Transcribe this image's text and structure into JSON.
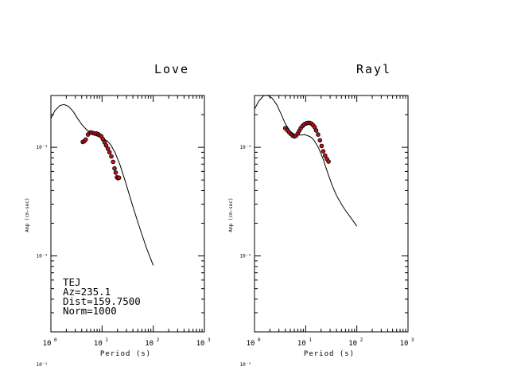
{
  "chart_data": [
    {
      "type": "line",
      "title": "Love",
      "xlabel": "Period (s)",
      "ylabel": "Amp (cm-sec)",
      "xscale": "log",
      "yscale": "log",
      "xlim": [
        1,
        1000
      ],
      "ylim": [
        2e-05,
        0.003
      ],
      "x_ticks": [
        {
          "base": "10",
          "exp": "0"
        },
        {
          "base": "10",
          "exp": "1"
        },
        {
          "base": "10",
          "exp": "2"
        },
        {
          "base": "10",
          "exp": "3"
        }
      ],
      "y_ticks": [
        {
          "value": 0.001,
          "label": "10⁻³"
        },
        {
          "value": 0.0001,
          "label": "10⁻⁴"
        },
        {
          "value": 1e-05,
          "label": "10⁻⁵"
        }
      ],
      "series": [
        {
          "kind": "line",
          "x": [
            1,
            1.2,
            1.5,
            1.8,
            2.2,
            2.7,
            3.3,
            4,
            5,
            6,
            7,
            8,
            9.5,
            11,
            13,
            15,
            18,
            22,
            27,
            33,
            40,
            50,
            60,
            75,
            100
          ],
          "y": [
            0.00185,
            0.00218,
            0.00242,
            0.00248,
            0.00239,
            0.00215,
            0.00185,
            0.00163,
            0.00145,
            0.00135,
            0.0013,
            0.00127,
            0.00124,
            0.00119,
            0.00113,
            0.00104,
            0.00089,
            0.000705,
            0.000525,
            0.000385,
            0.000285,
            0.000205,
            0.000158,
            0.000116,
            8.2e-05
          ]
        },
        {
          "kind": "scatter",
          "x": [
            4.2,
            4.5,
            4.8,
            5.3,
            5.8,
            6.2,
            6.7,
            7.2,
            7.8,
            8.4,
            9.0,
            9.7,
            10.4,
            11.2,
            12.0,
            13.0,
            14.0,
            15.2,
            16.4,
            17.5,
            18.5,
            19.5,
            20.5,
            21.5
          ],
          "y": [
            0.00112,
            0.00114,
            0.00118,
            0.00131,
            0.00137,
            0.00137,
            0.00135,
            0.00134,
            0.00134,
            0.00132,
            0.00129,
            0.00126,
            0.00119,
            0.00111,
            0.00104,
            0.00097,
            0.0009,
            0.000825,
            0.000735,
            0.00064,
            0.000585,
            0.00053,
            0.00052,
            0.000525
          ]
        }
      ]
    },
    {
      "type": "line",
      "title": "Rayl",
      "xlabel": "Period (s)",
      "ylabel": "Amp (cm-sec)",
      "xscale": "log",
      "yscale": "log",
      "xlim": [
        1,
        1000
      ],
      "ylim": [
        2e-05,
        0.003
      ],
      "x_ticks": [
        {
          "base": "10",
          "exp": "0"
        },
        {
          "base": "10",
          "exp": "1"
        },
        {
          "base": "10",
          "exp": "2"
        },
        {
          "base": "10",
          "exp": "3"
        }
      ],
      "y_ticks": [
        {
          "value": 0.001,
          "label": "10⁻³"
        },
        {
          "value": 0.0001,
          "label": "10⁻⁴"
        },
        {
          "value": 1e-05,
          "label": "10⁻⁵"
        }
      ],
      "series": [
        {
          "kind": "line",
          "x": [
            1,
            1.2,
            1.5,
            1.8,
            2.2,
            2.7,
            3.3,
            4,
            5,
            6,
            7,
            8,
            9.5,
            11,
            13,
            15,
            18,
            22,
            27,
            33,
            40,
            50,
            60,
            75,
            100
          ],
          "y": [
            0.00225,
            0.00265,
            0.00298,
            0.00302,
            0.00284,
            0.00248,
            0.00203,
            0.00165,
            0.0014,
            0.00132,
            0.0013,
            0.0013,
            0.00131,
            0.00128,
            0.00123,
            0.00114,
            0.00098,
            0.000775,
            0.00058,
            0.000445,
            0.00036,
            0.0003,
            0.000262,
            0.000228,
            0.000188
          ]
        },
        {
          "kind": "scatter",
          "x": [
            4.0,
            4.4,
            4.8,
            5.2,
            5.6,
            6.0,
            6.5,
            7.0,
            7.5,
            8.0,
            8.7,
            9.4,
            10.2,
            11.0,
            12.0,
            13.0,
            14.0,
            15.0,
            16.0,
            17.5,
            19.0,
            20.5,
            22.0,
            24.0,
            26.0,
            28.0
          ],
          "y": [
            0.0015,
            0.00143,
            0.00137,
            0.00132,
            0.00128,
            0.00126,
            0.00128,
            0.00134,
            0.00142,
            0.0015,
            0.00157,
            0.00163,
            0.00166,
            0.00168,
            0.00168,
            0.00165,
            0.0016,
            0.00153,
            0.00143,
            0.00131,
            0.00116,
            0.00103,
            0.00092,
            0.00084,
            0.00078,
            0.00074
          ]
        }
      ]
    }
  ],
  "info": {
    "station": "TEJ",
    "azimuth": "Az=235.1",
    "distance": "Dist=159.7500",
    "norm": "Norm=1000"
  }
}
